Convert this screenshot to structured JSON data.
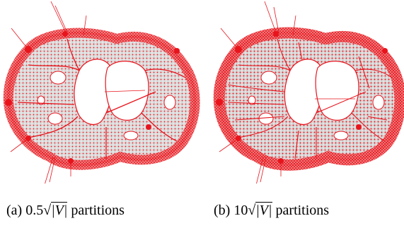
{
  "figure": {
    "panels": [
      {
        "label": "(a)",
        "coefficient": "0.5",
        "radical_sign": "√",
        "radicand": "|V|",
        "suffix": "partitions"
      },
      {
        "label": "(b)",
        "coefficient": "10",
        "radical_sign": "√",
        "radicand": "|V|",
        "suffix": "partitions"
      }
    ],
    "colors": {
      "edge_red": "#e8141c",
      "interior_gray": "#c9c9c9",
      "background": "#ffffff"
    }
  }
}
